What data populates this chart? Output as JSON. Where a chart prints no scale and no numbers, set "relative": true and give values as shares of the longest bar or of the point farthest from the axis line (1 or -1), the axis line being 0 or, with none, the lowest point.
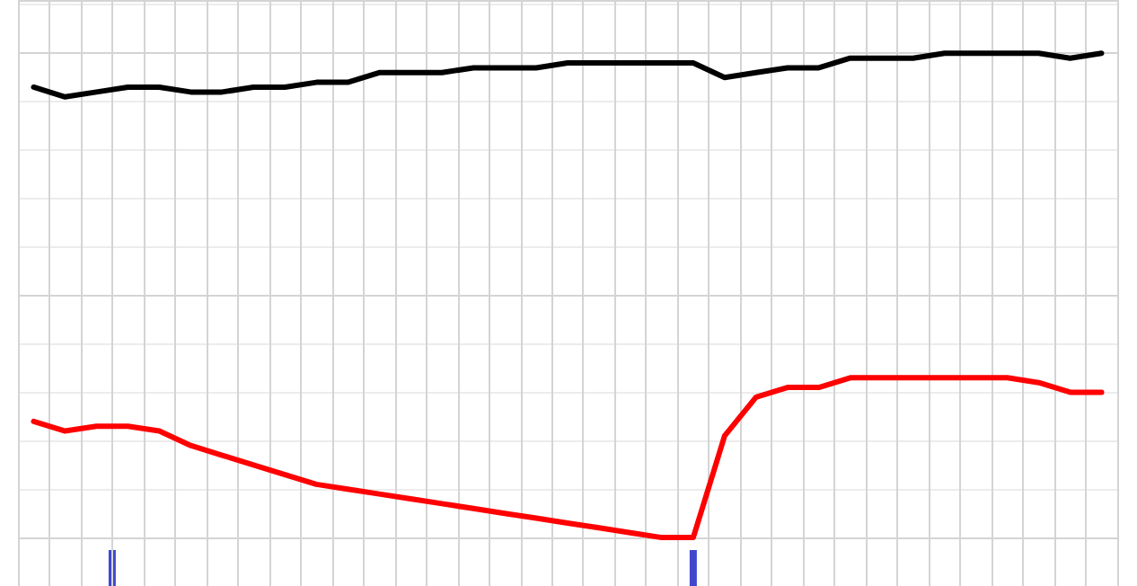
{
  "chart_data": {
    "type": "line",
    "relative": true,
    "grid": true,
    "marker": "none",
    "line_style": "solid",
    "categories": [
      null,
      null,
      null,
      null,
      null,
      null,
      null,
      null,
      null,
      null,
      null,
      null,
      null,
      null,
      null,
      null,
      null,
      null,
      null,
      null,
      null,
      null,
      null,
      null,
      null,
      null,
      null,
      null,
      null,
      null,
      null,
      null,
      null,
      null,
      null
    ],
    "series": [
      {
        "color": "#000000",
        "values": [
          0.93,
          0.91,
          0.92,
          0.93,
          0.93,
          0.92,
          0.92,
          0.93,
          0.93,
          0.94,
          0.94,
          0.96,
          0.96,
          0.96,
          0.97,
          0.97,
          0.97,
          0.98,
          0.98,
          0.98,
          0.98,
          0.98,
          0.95,
          0.96,
          0.97,
          0.97,
          0.99,
          0.99,
          0.99,
          1.0,
          1.0,
          1.0,
          1.0,
          0.99,
          1.0
        ]
      },
      {
        "color": "#ff0000",
        "values": [
          0.24,
          0.22,
          0.23,
          0.23,
          0.22,
          0.19,
          0.17,
          0.15,
          0.13,
          0.11,
          0.1,
          0.09,
          0.08,
          0.07,
          0.06,
          0.05,
          0.04,
          0.03,
          0.02,
          0.01,
          0,
          0,
          0.21,
          0.29,
          0.31,
          0.31,
          0.33,
          0.33,
          0.33,
          0.33,
          0.33,
          0.33,
          0.32,
          0.3,
          0.3
        ]
      }
    ]
  }
}
